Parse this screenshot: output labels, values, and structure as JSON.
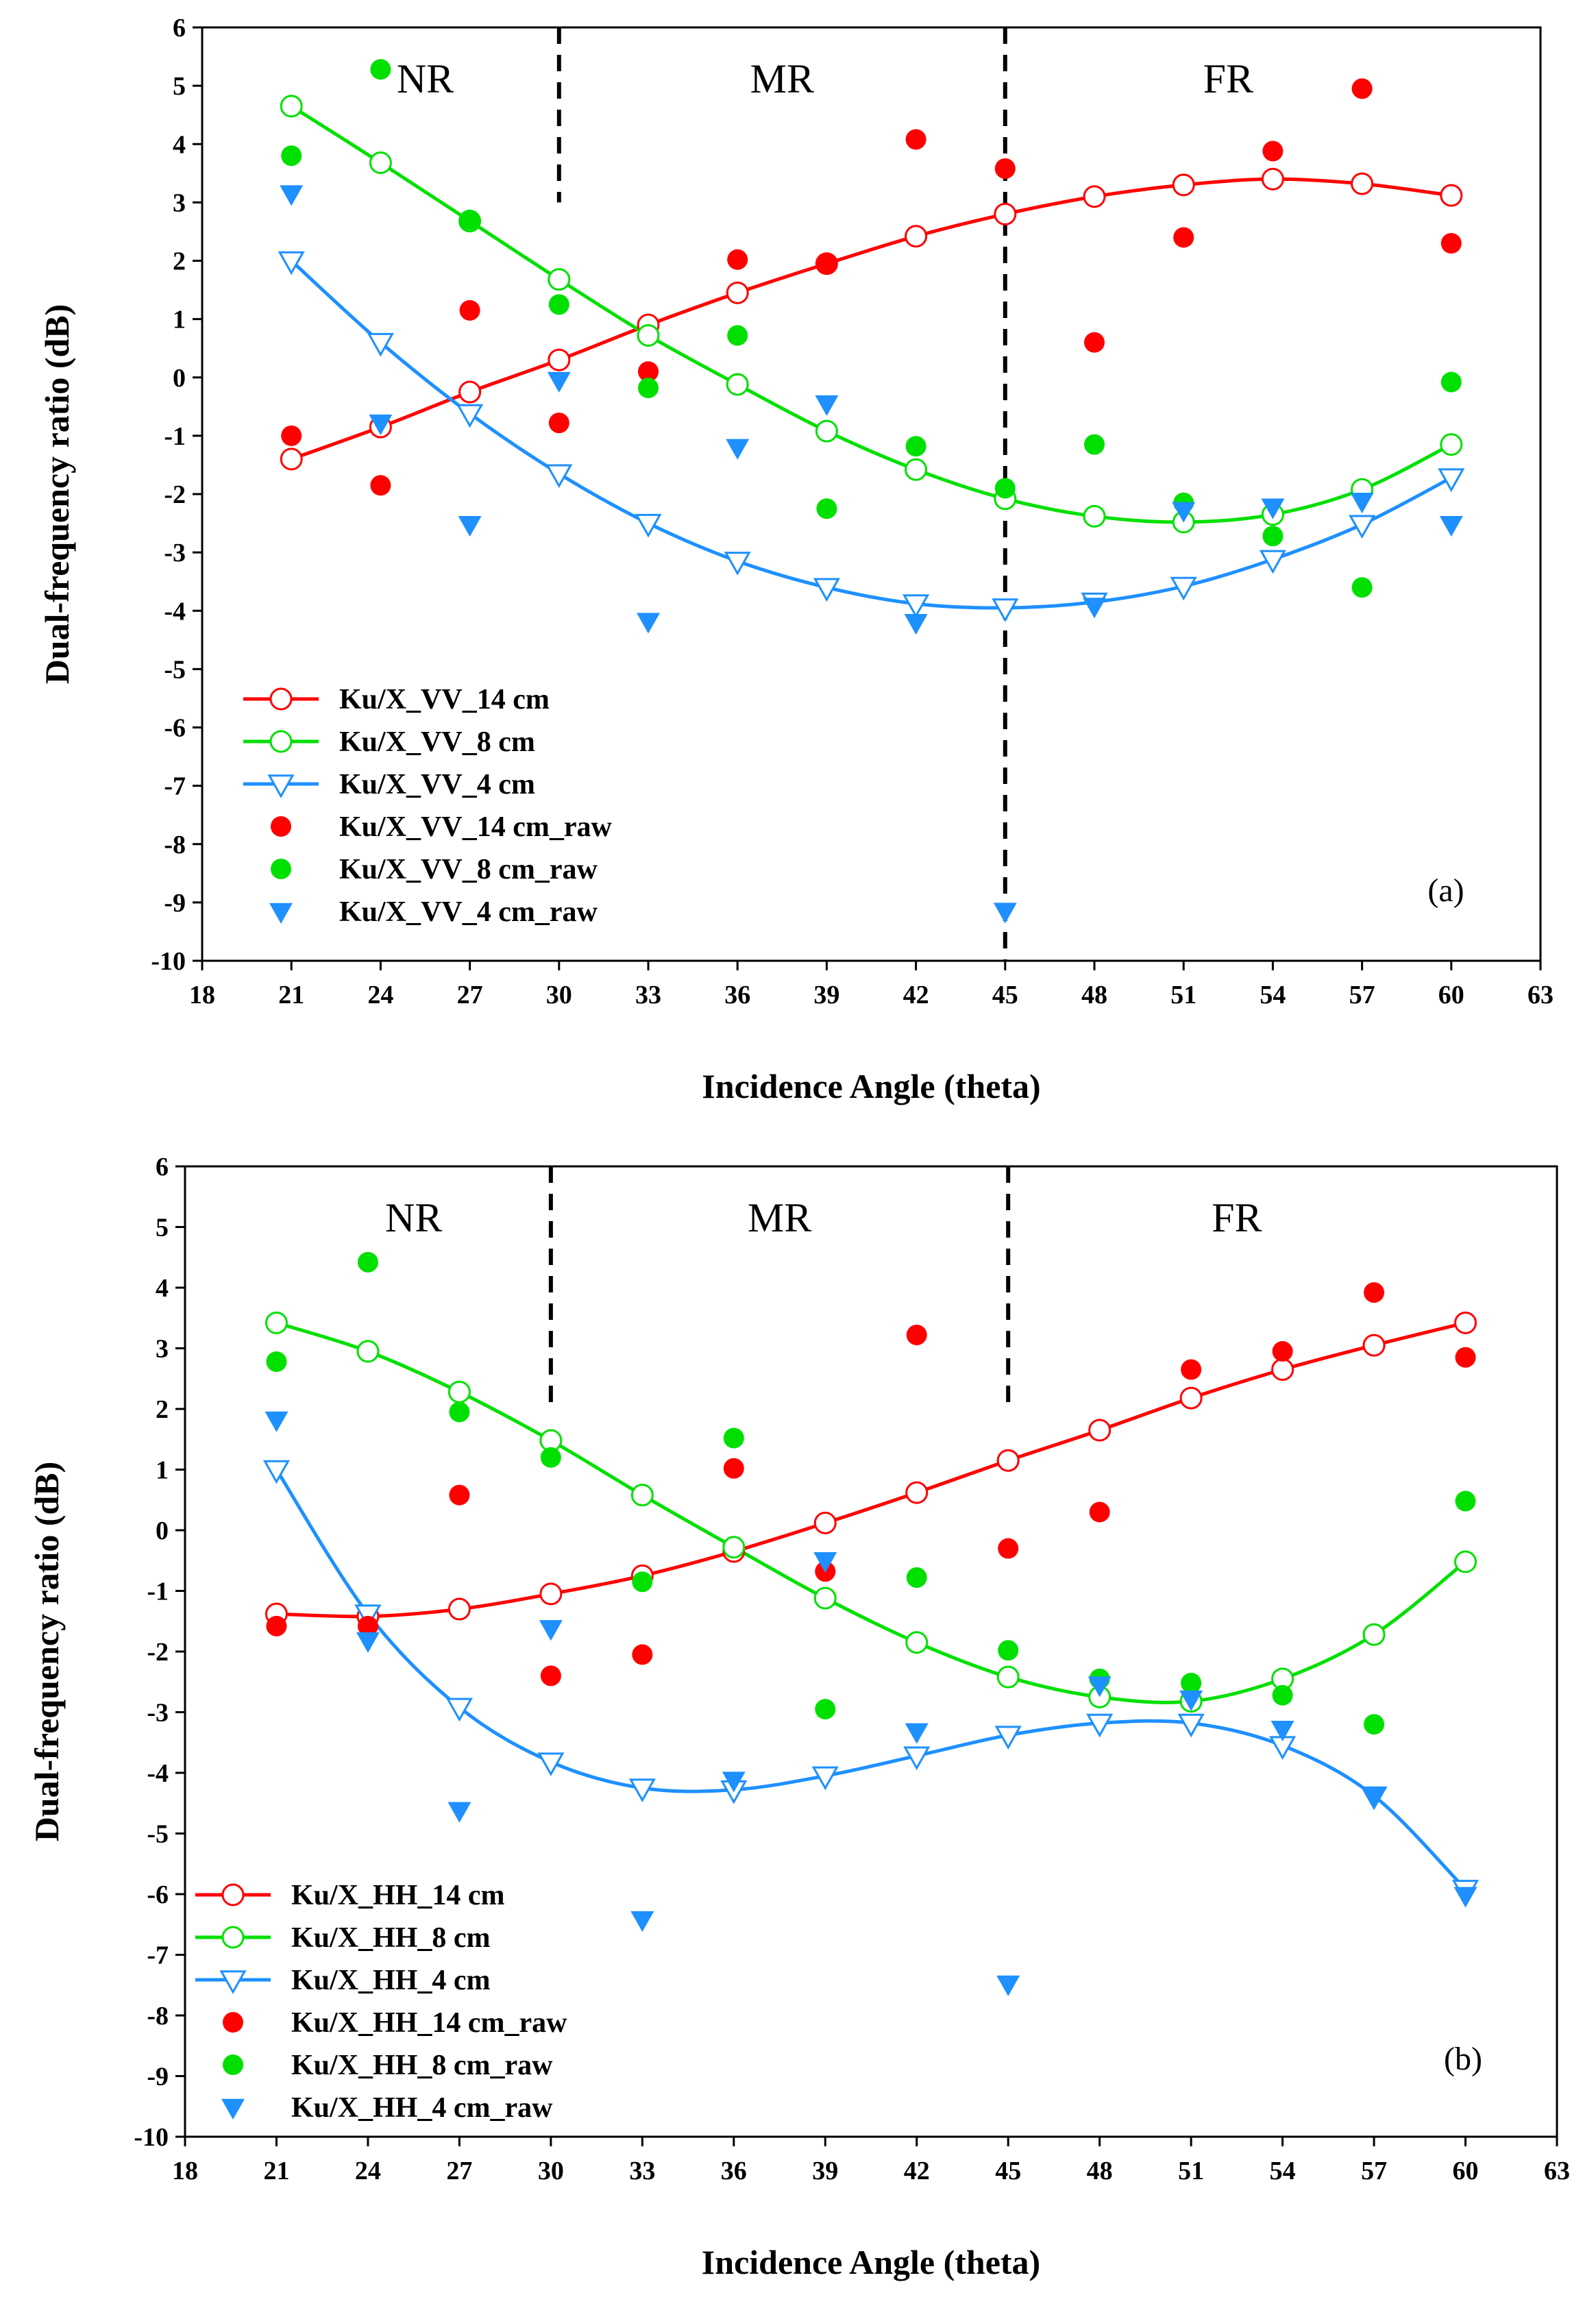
{
  "chart_data": [
    {
      "type": "scatter",
      "panel_label": "(a)",
      "title": "",
      "xlabel": "Incidence Angle (theta)",
      "ylabel": "Dual-frequency ratio (dB)",
      "xlim": [
        18,
        63
      ],
      "ylim": [
        -10,
        6
      ],
      "xticks": [
        "18",
        "21",
        "24",
        "27",
        "30",
        "33",
        "36",
        "39",
        "42",
        "45",
        "48",
        "51",
        "54",
        "57",
        "60",
        "63"
      ],
      "yticks": [
        "-10",
        "-9",
        "-8",
        "-7",
        "-6",
        "-5",
        "-4",
        "-3",
        "-2",
        "-1",
        "0",
        "1",
        "2",
        "3",
        "4",
        "5",
        "6"
      ],
      "regions": [
        {
          "label": "NR",
          "x": 25.5
        },
        {
          "label": "MR",
          "x": 37.5
        },
        {
          "label": "FR",
          "x": 52.5
        }
      ],
      "dividers": [
        {
          "x": 30,
          "y_from": 3,
          "y_to": 6
        },
        {
          "x": 45,
          "y_from": -10,
          "y_to": 6
        }
      ],
      "x": [
        21,
        24,
        27,
        30,
        33,
        36,
        39,
        42,
        45,
        48,
        51,
        54,
        57,
        60
      ],
      "series": [
        {
          "name": "Ku/X_VV_14 cm",
          "kind": "fit",
          "marker": "circle",
          "color": "#ff0000",
          "values": [
            -1.4,
            -0.85,
            -0.25,
            0.3,
            0.9,
            1.45,
            1.95,
            2.42,
            2.8,
            3.1,
            3.3,
            3.4,
            3.32,
            3.12
          ]
        },
        {
          "name": "Ku/X_VV_8 cm",
          "kind": "fit",
          "marker": "circle",
          "color": "#00e000",
          "values": [
            4.65,
            3.68,
            2.68,
            1.68,
            0.72,
            -0.12,
            -0.92,
            -1.58,
            -2.08,
            -2.38,
            -2.48,
            -2.35,
            -1.92,
            -1.15
          ]
        },
        {
          "name": "Ku/X_VV_4 cm",
          "kind": "fit",
          "marker": "triangle",
          "color": "#1e90ff",
          "values": [
            2.0,
            0.6,
            -0.62,
            -1.65,
            -2.5,
            -3.15,
            -3.6,
            -3.88,
            -3.95,
            -3.85,
            -3.58,
            -3.12,
            -2.52,
            -1.72
          ]
        },
        {
          "name": "Ku/X_VV_14 cm_raw",
          "kind": "raw",
          "marker": "circle",
          "color": "#ff0000",
          "values": [
            -1.0,
            -1.85,
            1.15,
            -0.78,
            0.1,
            2.02,
            1.95,
            4.08,
            3.58,
            0.6,
            2.4,
            3.88,
            4.95,
            2.3
          ]
        },
        {
          "name": "Ku/X_VV_8 cm_raw",
          "kind": "raw",
          "marker": "circle",
          "color": "#00e000",
          "values": [
            3.8,
            5.28,
            2.7,
            1.25,
            -0.18,
            0.72,
            -2.25,
            -1.18,
            -1.9,
            -1.15,
            -2.15,
            -2.72,
            -3.6,
            -0.08
          ]
        },
        {
          "name": "Ku/X_VV_4 cm_raw",
          "kind": "raw",
          "marker": "triangle",
          "color": "#1e90ff",
          "values": [
            3.15,
            -0.78,
            -2.52,
            -0.05,
            -4.18,
            -1.2,
            -0.45,
            -4.2,
            -9.15,
            -3.92,
            -2.28,
            -2.22,
            -2.12,
            -2.52
          ]
        }
      ]
    },
    {
      "type": "scatter",
      "panel_label": "(b)",
      "title": "",
      "xlabel": "Incidence Angle (theta)",
      "ylabel": "Dual-frequency ratio (dB)",
      "xlim": [
        18,
        63
      ],
      "ylim": [
        -10,
        6
      ],
      "xticks": [
        "18",
        "21",
        "24",
        "27",
        "30",
        "33",
        "36",
        "39",
        "42",
        "45",
        "48",
        "51",
        "54",
        "57",
        "60",
        "63"
      ],
      "yticks": [
        "-10",
        "-9",
        "-8",
        "-7",
        "-6",
        "-5",
        "-4",
        "-3",
        "-2",
        "-1",
        "0",
        "1",
        "2",
        "3",
        "4",
        "5",
        "6"
      ],
      "regions": [
        {
          "label": "NR",
          "x": 25.5
        },
        {
          "label": "MR",
          "x": 37.5
        },
        {
          "label": "FR",
          "x": 52.5
        }
      ],
      "dividers": [
        {
          "x": 30,
          "y_from": 2,
          "y_to": 6
        },
        {
          "x": 45,
          "y_from": 2,
          "y_to": 6
        }
      ],
      "x": [
        21,
        24,
        27,
        30,
        33,
        36,
        39,
        42,
        45,
        48,
        51,
        54,
        57,
        60
      ],
      "series": [
        {
          "name": "Ku/X_HH_14 cm",
          "kind": "fit",
          "marker": "circle",
          "color": "#ff0000",
          "values": [
            -1.38,
            -1.42,
            -1.3,
            -1.05,
            -0.75,
            -0.35,
            0.12,
            0.62,
            1.15,
            1.65,
            2.18,
            2.65,
            3.05,
            3.42
          ]
        },
        {
          "name": "Ku/X_HH_8 cm",
          "kind": "fit",
          "marker": "circle",
          "color": "#00e000",
          "values": [
            3.42,
            2.95,
            2.28,
            1.48,
            0.58,
            -0.28,
            -1.12,
            -1.85,
            -2.42,
            -2.75,
            -2.82,
            -2.45,
            -1.72,
            -0.52
          ]
        },
        {
          "name": "Ku/X_HH_4 cm",
          "kind": "fit",
          "marker": "triangle",
          "color": "#1e90ff",
          "values": [
            1.0,
            -1.38,
            -2.92,
            -3.82,
            -4.25,
            -4.28,
            -4.05,
            -3.72,
            -3.38,
            -3.18,
            -3.18,
            -3.55,
            -4.38,
            -5.92
          ]
        },
        {
          "name": "Ku/X_HH_14 cm_raw",
          "kind": "raw",
          "marker": "circle",
          "color": "#ff0000",
          "values": [
            -1.58,
            -1.58,
            0.58,
            -2.4,
            -2.05,
            1.02,
            -0.68,
            3.22,
            -0.3,
            0.3,
            2.65,
            2.95,
            3.92,
            2.85
          ]
        },
        {
          "name": "Ku/X_HH_8 cm_raw",
          "kind": "raw",
          "marker": "circle",
          "color": "#00e000",
          "values": [
            2.78,
            4.42,
            1.95,
            1.2,
            -0.85,
            1.52,
            -2.95,
            -0.78,
            -1.98,
            -2.45,
            -2.52,
            -2.72,
            -3.2,
            0.48
          ]
        },
        {
          "name": "Ku/X_HH_4 cm_raw",
          "kind": "raw",
          "marker": "triangle",
          "color": "#1e90ff",
          "values": [
            1.82,
            -1.82,
            -4.62,
            -1.62,
            -6.42,
            -4.12,
            -0.5,
            -3.32,
            -7.48,
            -2.55,
            -2.78,
            -3.28,
            -4.38,
            -6.02
          ]
        }
      ]
    }
  ]
}
